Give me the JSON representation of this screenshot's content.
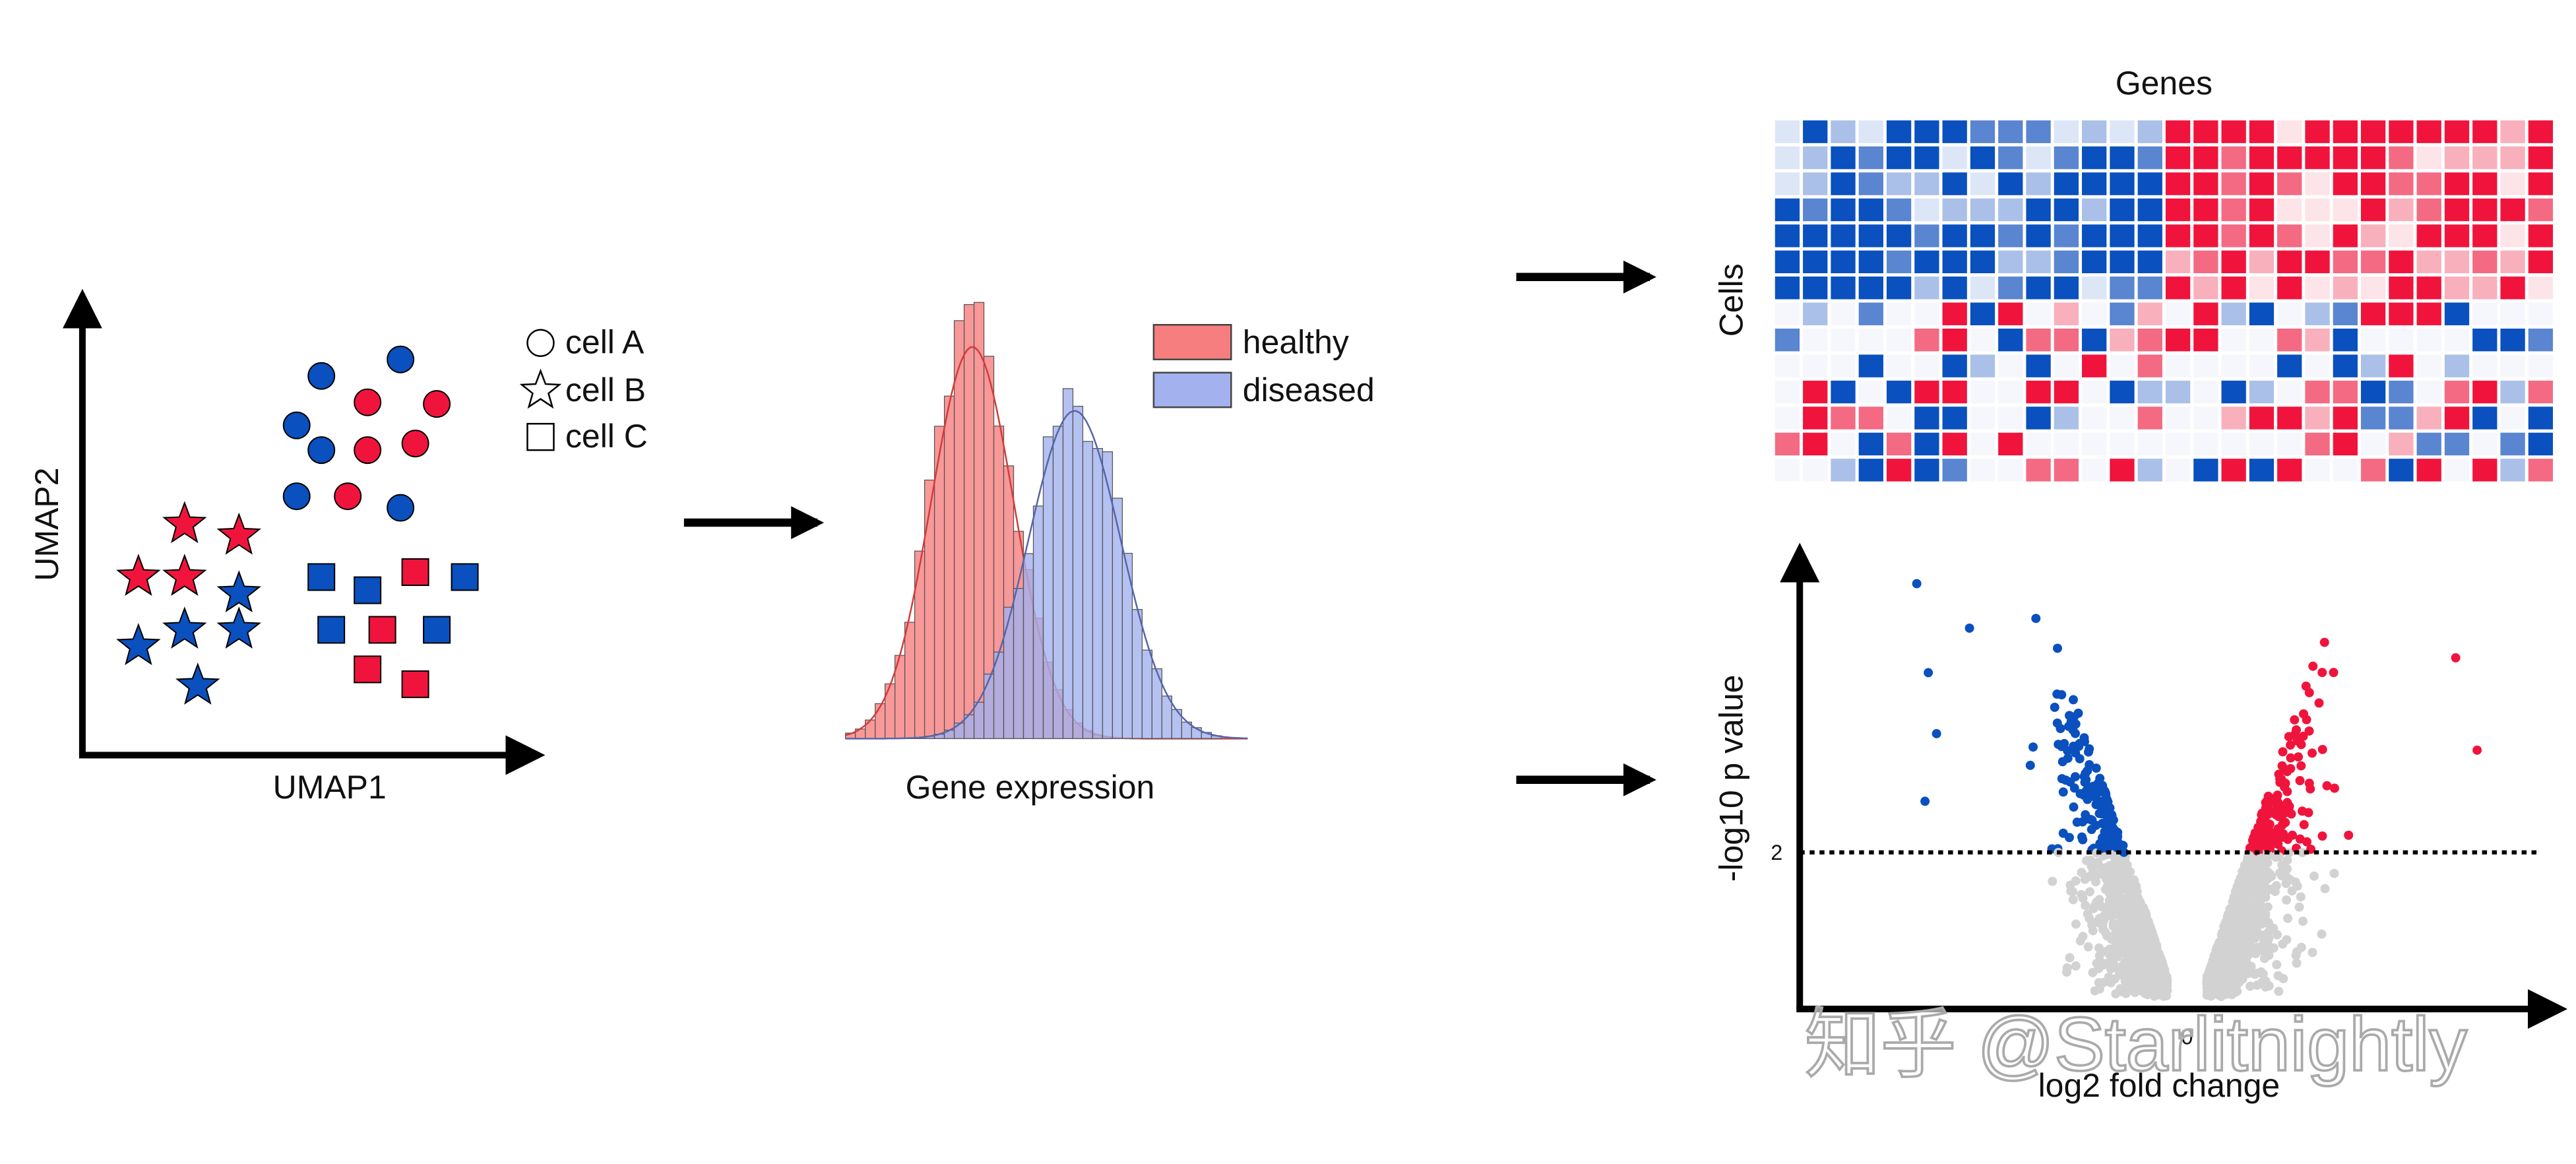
{
  "umap": {
    "x_label": "UMAP1",
    "y_label": "UMAP2",
    "legend": [
      "cell A",
      "cell B",
      "cell C"
    ]
  },
  "histogram": {
    "x_label": "Gene expression",
    "legend": [
      "healthy",
      "diseased"
    ]
  },
  "heatmap": {
    "title": "Genes",
    "y_label": "Cells"
  },
  "volcano": {
    "x_label": "log2 fold change",
    "y_label": "-log10 p value",
    "threshold_label": "2",
    "x_tick": "0"
  },
  "watermark": "知乎 @Starlitnightly"
}
